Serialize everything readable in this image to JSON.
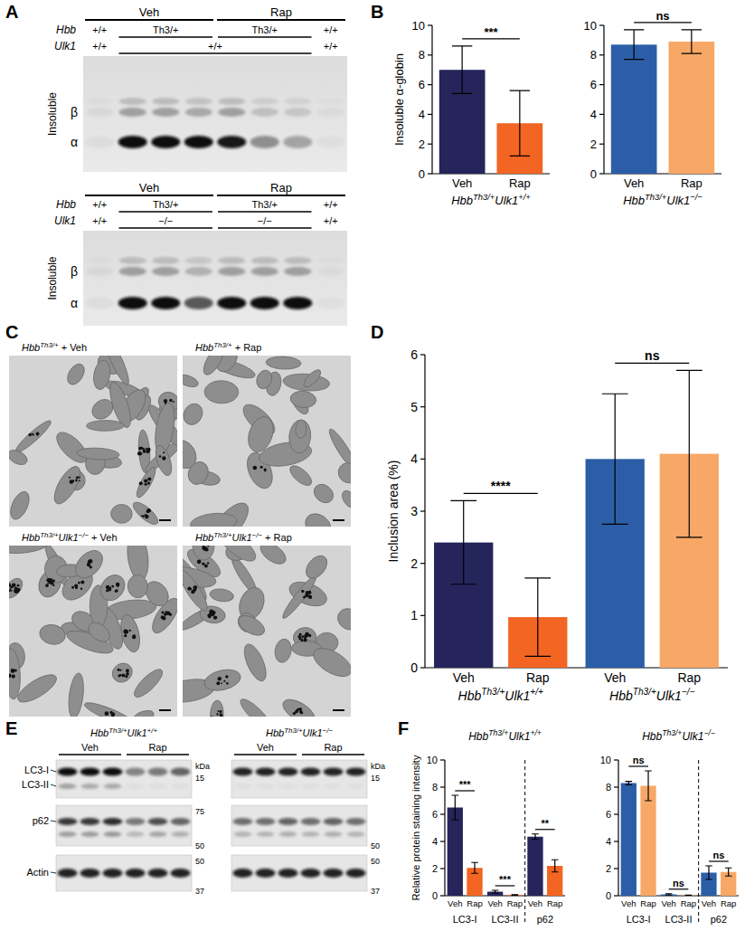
{
  "figure": {
    "panel_labels": [
      "A",
      "B",
      "C",
      "D",
      "E",
      "F"
    ],
    "gels": [
      {
        "treatments": [
          "Veh",
          "Rap"
        ],
        "rows": [
          {
            "name": "Hbb",
            "labels": [
              "+/+",
              "Th3/+",
              "Th3/+",
              "+/+"
            ]
          },
          {
            "name": "Ulk1",
            "labels": [
              "+/+",
              "+/+",
              "+/+"
            ]
          }
        ],
        "fraction": "Insoluble",
        "bands": [
          "β",
          "α"
        ]
      },
      {
        "treatments": [
          "Veh",
          "Rap"
        ],
        "rows": [
          {
            "name": "Hbb",
            "labels": [
              "+/+",
              "Th3/+",
              "Th3/+",
              "+/+"
            ]
          },
          {
            "name": "Ulk1",
            "labels": [
              "+/+",
              "−/−",
              "−/−",
              "+/+"
            ]
          }
        ],
        "fraction": "Insoluble",
        "bands": [
          "β",
          "α"
        ]
      }
    ],
    "micrographs": [
      {
        "label": [
          "Hbb",
          "Th3/+",
          " + Veh"
        ]
      },
      {
        "label": [
          "Hbb",
          "Th3/+",
          " + Rap"
        ]
      },
      {
        "label": [
          "Hbb",
          "Th3/+",
          "Ulk1",
          "−/−",
          " + Veh"
        ]
      },
      {
        "label": [
          "Hbb",
          "Th3/+",
          "Ulk1",
          "−/−",
          " + Rap"
        ]
      }
    ],
    "blot_rows": [
      "LC3-I",
      "LC3-II",
      "p62",
      "Actin"
    ],
    "blots": [
      {
        "title": [
          "Hbb",
          "Th3/+",
          "Ulk1",
          "+/+"
        ],
        "treatments": [
          "Veh",
          "Rap"
        ],
        "markers": {
          "lc3": [
            "kDa",
            "15"
          ],
          "p62": [
            "75",
            "50"
          ],
          "actin": [
            "50",
            "37"
          ]
        }
      },
      {
        "title": [
          "Hbb",
          "Th3/+",
          "Ulk1",
          "−/−"
        ],
        "treatments": [
          "Veh",
          "Rap"
        ],
        "markers": {
          "lc3": [
            "kDa",
            "15"
          ],
          "p62": [
            "50"
          ],
          "actin": [
            "50",
            "37"
          ]
        }
      }
    ]
  },
  "chart_data": [
    {
      "type": "bar",
      "y_label": "Insoluble α-globin",
      "categories": [
        "Veh",
        "Rap"
      ],
      "values": [
        7.0,
        3.4
      ],
      "errors": [
        1.6,
        2.2
      ],
      "colors": [
        "#25255c",
        "#f26522"
      ],
      "ylim": [
        0,
        10
      ],
      "yticks": [
        0,
        2,
        4,
        6,
        8,
        10
      ],
      "group_labels": [
        [
          "Hbb",
          "Th3/+",
          "Ulk1",
          "+/+"
        ]
      ],
      "significance": [
        "***"
      ]
    },
    {
      "type": "bar",
      "categories": [
        "Veh",
        "Rap"
      ],
      "values": [
        8.7,
        8.9
      ],
      "errors": [
        1.0,
        0.8
      ],
      "colors": [
        "#2c5ea8",
        "#f8a866"
      ],
      "ylim": [
        0,
        10
      ],
      "yticks": [
        0,
        2,
        4,
        6,
        8,
        10
      ],
      "group_labels": [
        [
          "Hbb",
          "Th3/+",
          "Ulk1",
          "−/−"
        ]
      ],
      "significance": [
        "ns"
      ]
    },
    {
      "type": "bar",
      "y_label": "Inclusion area (%)",
      "categories": [
        "Veh",
        "Rap",
        "Veh",
        "Rap"
      ],
      "values": [
        2.4,
        0.97,
        4.0,
        4.1
      ],
      "errors": [
        0.8,
        0.75,
        1.25,
        1.6
      ],
      "colors": [
        "#25255c",
        "#f26522",
        "#2c5ea8",
        "#f8a866"
      ],
      "ylim": [
        0,
        6
      ],
      "yticks": [
        0,
        1,
        2,
        3,
        4,
        5,
        6
      ],
      "group_labels": [
        [
          "Hbb",
          "Th3/+",
          "Ulk1",
          "+/+"
        ],
        [
          "Hbb",
          "Th3/+",
          "Ulk1",
          "−/−"
        ]
      ],
      "significance": [
        "****",
        "ns"
      ]
    },
    {
      "type": "bar",
      "title": [
        "Hbb",
        "Th3/+",
        "Ulk1",
        "+/+"
      ],
      "y_label": "Relative protein staining intensity",
      "categories": [
        "Veh",
        "Rap",
        "Veh",
        "Rap",
        "Veh",
        "Rap"
      ],
      "values": [
        6.5,
        2.05,
        0.3,
        0.05,
        4.35,
        2.2
      ],
      "errors": [
        0.9,
        0.4,
        0.1,
        0.03,
        0.2,
        0.45
      ],
      "colors": [
        "#25255c",
        "#f26522",
        "#25255c",
        "#f26522",
        "#25255c",
        "#f26522"
      ],
      "ylim": [
        0,
        10
      ],
      "yticks": [
        0,
        2,
        4,
        6,
        8,
        10
      ],
      "group_labels": [
        "LC3-I",
        "LC3-II",
        "p62"
      ],
      "significance": [
        "***",
        "***",
        "**"
      ]
    },
    {
      "type": "bar",
      "title": [
        "Hbb",
        "Th3/+",
        "Ulk1",
        "−/−"
      ],
      "categories": [
        "Veh",
        "Rap",
        "Veh",
        "Rap",
        "Veh",
        "Rap"
      ],
      "values": [
        8.3,
        8.1,
        0.1,
        0.03,
        1.7,
        1.75
      ],
      "errors": [
        0.12,
        1.1,
        0.05,
        0.02,
        0.5,
        0.3
      ],
      "colors": [
        "#2c5ea8",
        "#f8a866",
        "#2c5ea8",
        "#f8a866",
        "#2c5ea8",
        "#f8a866"
      ],
      "ylim": [
        0,
        10
      ],
      "yticks": [
        0,
        2,
        4,
        6,
        8,
        10
      ],
      "group_labels": [
        "LC3-I",
        "LC3-II",
        "p62"
      ],
      "significance": [
        "ns",
        "ns",
        "ns"
      ]
    }
  ]
}
